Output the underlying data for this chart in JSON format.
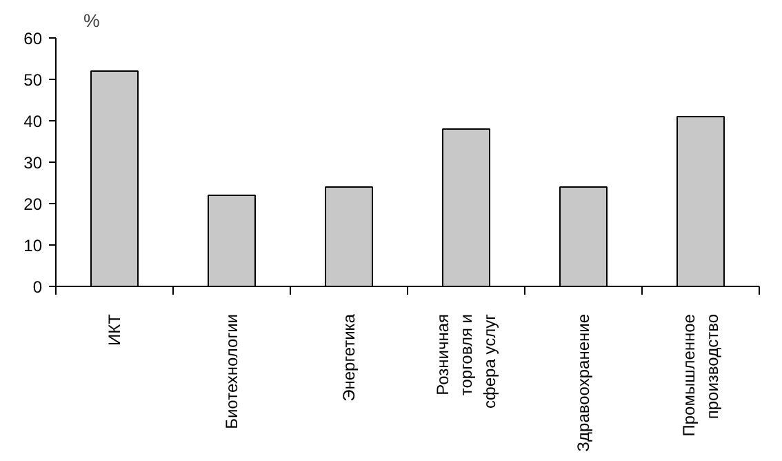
{
  "chart_data": {
    "type": "bar",
    "ylabel": "%",
    "categories": [
      "ИКТ",
      "Биотехнологии",
      "Энергетика",
      "Розничная торговля и сфера услуг",
      "Здравоохранение",
      "Промышленное производство"
    ],
    "values": [
      52,
      22,
      24,
      38,
      24,
      41
    ],
    "color": "#c8c8c8",
    "ylim": [
      0,
      60
    ],
    "yticks": [
      0,
      10,
      20,
      30,
      40,
      50,
      60
    ],
    "grid": false
  }
}
